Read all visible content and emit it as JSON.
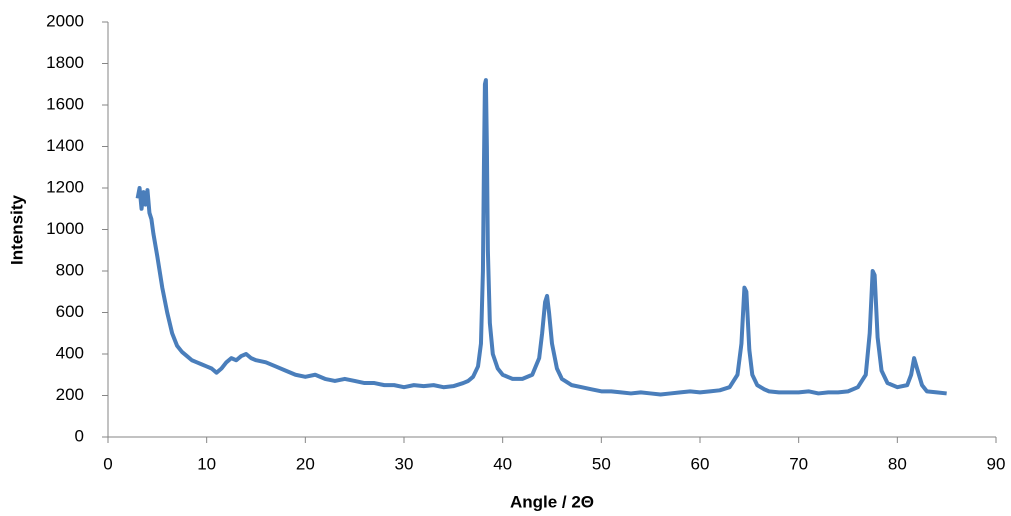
{
  "chart_data": {
    "type": "line",
    "x_label": "Angle / 2Θ",
    "y_label": "Intensity",
    "color": "#4a7ebb",
    "x": [
      3.0,
      3.2,
      3.4,
      3.6,
      3.8,
      4.0,
      4.2,
      4.4,
      4.6,
      5.0,
      5.5,
      6.0,
      6.5,
      7.0,
      7.5,
      8,
      8.5,
      9,
      9.5,
      10,
      10.5,
      11,
      11.5,
      12,
      12.5,
      13,
      13.5,
      14,
      14.5,
      15,
      16,
      17,
      18,
      19,
      20,
      21,
      22,
      23,
      24,
      25,
      26,
      27,
      28,
      29,
      30,
      31,
      32,
      33,
      34,
      35,
      36,
      36.5,
      37,
      37.5,
      37.8,
      38.0,
      38.1,
      38.2,
      38.3,
      38.4,
      38.5,
      38.7,
      39,
      39.5,
      40,
      41,
      42,
      43,
      43.7,
      44,
      44.3,
      44.5,
      44.7,
      45,
      45.5,
      46,
      47,
      48,
      49,
      50,
      51,
      52,
      53,
      54,
      55,
      56,
      57,
      58,
      59,
      60,
      61,
      62,
      63,
      63.8,
      64.2,
      64.5,
      64.7,
      65,
      65.3,
      65.8,
      66.5,
      67,
      68,
      69,
      70,
      71,
      72,
      73,
      74,
      75,
      76,
      76.8,
      77.2,
      77.5,
      77.7,
      78,
      78.4,
      79,
      80,
      81,
      81.4,
      81.7,
      82,
      82.5,
      83,
      84,
      85
    ],
    "values": [
      1150,
      1200,
      1100,
      1180,
      1120,
      1190,
      1080,
      1050,
      980,
      870,
      720,
      600,
      500,
      440,
      410,
      390,
      370,
      360,
      350,
      340,
      330,
      310,
      330,
      360,
      380,
      370,
      390,
      400,
      380,
      370,
      360,
      340,
      320,
      300,
      290,
      300,
      280,
      270,
      280,
      270,
      260,
      260,
      250,
      250,
      240,
      250,
      245,
      250,
      240,
      245,
      260,
      270,
      290,
      340,
      450,
      800,
      1300,
      1700,
      1720,
      1400,
      900,
      550,
      400,
      330,
      300,
      280,
      280,
      300,
      380,
      500,
      650,
      680,
      600,
      450,
      330,
      280,
      250,
      240,
      230,
      220,
      220,
      215,
      210,
      215,
      210,
      205,
      210,
      215,
      220,
      215,
      220,
      225,
      240,
      300,
      450,
      720,
      700,
      420,
      300,
      250,
      230,
      220,
      215,
      215,
      215,
      220,
      210,
      215,
      215,
      220,
      240,
      300,
      500,
      800,
      780,
      480,
      320,
      260,
      240,
      250,
      300,
      380,
      330,
      250,
      220,
      215,
      210
    ],
    "xlim": [
      0,
      90
    ],
    "xticks": [
      0,
      10,
      20,
      30,
      40,
      50,
      60,
      70,
      80,
      90
    ],
    "ylim": [
      0,
      2000
    ],
    "yticks": [
      0,
      200,
      400,
      600,
      800,
      1000,
      1200,
      1400,
      1600,
      1800,
      2000
    ]
  }
}
